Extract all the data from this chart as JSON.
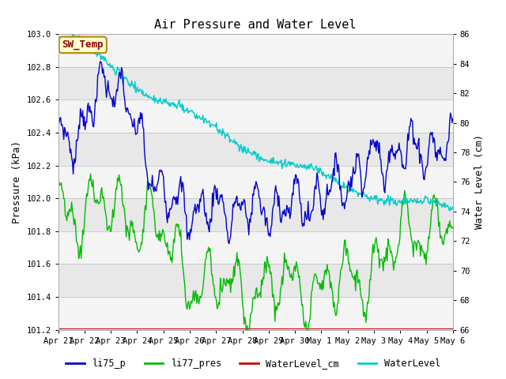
{
  "title": "Air Pressure and Water Level",
  "ylabel_left": "Pressure (kPa)",
  "ylabel_right": "Water Level (cm)",
  "ylim_left": [
    101.2,
    103.0
  ],
  "ylim_right": [
    66,
    86
  ],
  "yticks_left": [
    101.2,
    101.4,
    101.6,
    101.8,
    102.0,
    102.2,
    102.4,
    102.6,
    102.8,
    103.0
  ],
  "yticks_right": [
    66,
    68,
    70,
    72,
    74,
    76,
    78,
    80,
    82,
    84,
    86
  ],
  "plot_bg_color": "#e8e8e8",
  "annotation_text": "SW_Temp",
  "annotation_color": "#8b0000",
  "annotation_bg": "#ffffcc",
  "annotation_border": "#b8860b",
  "legend_labels": [
    "li75_p",
    "li77_pres",
    "WaterLevel_cm",
    "WaterLevel"
  ],
  "line_colors": [
    "#0000cc",
    "#00bb00",
    "#cc0000",
    "#00cccc"
  ],
  "font_family": "monospace",
  "title_fontsize": 11,
  "label_fontsize": 9,
  "tick_fontsize": 7.5,
  "legend_fontsize": 8.5,
  "x_tick_labels": [
    "Apr 21",
    "Apr 22",
    "Apr 23",
    "Apr 24",
    "Apr 25",
    "Apr 26",
    "Apr 27",
    "Apr 28",
    "Apr 29",
    "Apr 30",
    "May 1 ",
    "May 2",
    "May 3",
    "May 4",
    "May 5",
    "May 6"
  ],
  "n_days": 15,
  "n_points": 500
}
